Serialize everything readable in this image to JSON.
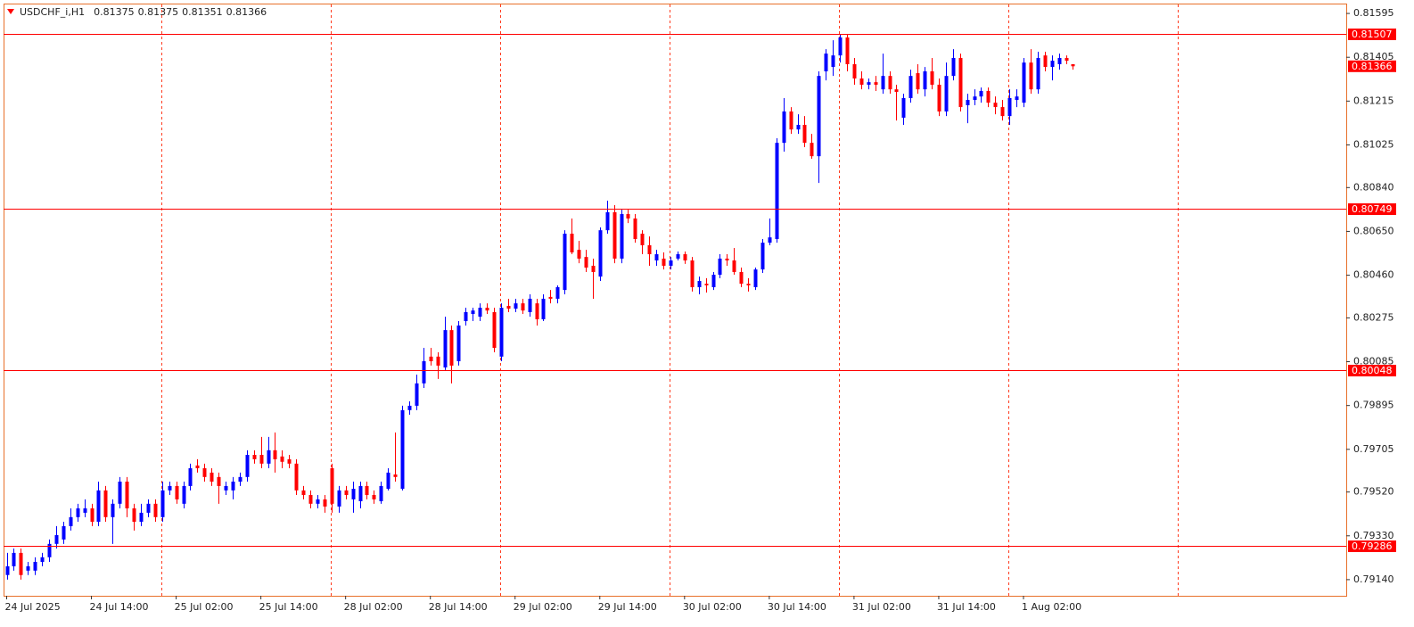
{
  "chart_data": {
    "type": "candlestick",
    "title": "USDCHF_i,H1",
    "up_color": "#0000ff",
    "down_color": "#ff0000",
    "level_color": "#ff0000",
    "ylim": [
      0.7907,
      0.81634
    ],
    "yticks": [
      0.81595,
      0.81405,
      0.81215,
      0.81025,
      {
        "value": 0.8084,
        "label": "0.80840"
      },
      {
        "value": 0.8065,
        "label": "0.80650"
      },
      {
        "value": 0.8046,
        "label": "0.80460"
      },
      0.80275,
      0.80085,
      0.79895,
      0.79705,
      {
        "value": 0.7952,
        "label": "0.79520"
      },
      {
        "value": 0.7933,
        "label": "0.79330"
      },
      {
        "value": 0.7914,
        "label": "0.79140"
      }
    ],
    "levels": [
      0.81507,
      0.80749,
      0.80048,
      0.79286
    ],
    "period_separators": [
      22,
      46,
      70,
      94,
      118,
      142,
      166
    ],
    "categories": [
      "24 Jul 2025",
      null,
      null,
      null,
      null,
      null,
      null,
      null,
      null,
      null,
      null,
      null,
      "24 Jul 14:00",
      null,
      null,
      null,
      null,
      null,
      null,
      null,
      null,
      null,
      null,
      null,
      "25 Jul 02:00",
      null,
      null,
      null,
      null,
      null,
      null,
      null,
      null,
      null,
      null,
      null,
      "25 Jul 14:00",
      null,
      null,
      null,
      null,
      null,
      null,
      null,
      null,
      null,
      null,
      null,
      "28 Jul 02:00",
      null,
      null,
      null,
      null,
      null,
      null,
      null,
      null,
      null,
      null,
      null,
      "28 Jul 14:00",
      null,
      null,
      null,
      null,
      null,
      null,
      null,
      null,
      null,
      null,
      null,
      "29 Jul 02:00",
      null,
      null,
      null,
      null,
      null,
      null,
      null,
      null,
      null,
      null,
      null,
      "29 Jul 14:00",
      null,
      null,
      null,
      null,
      null,
      null,
      null,
      null,
      null,
      null,
      null,
      "30 Jul 02:00",
      null,
      null,
      null,
      null,
      null,
      null,
      null,
      null,
      null,
      null,
      null,
      "30 Jul 14:00",
      null,
      null,
      null,
      null,
      null,
      null,
      null,
      null,
      null,
      null,
      null,
      "31 Jul 02:00",
      null,
      null,
      null,
      null,
      null,
      null,
      null,
      null,
      null,
      null,
      null,
      "31 Jul 14:00",
      null,
      null,
      null,
      null,
      null,
      null,
      null,
      null,
      null,
      null,
      null,
      "1 Aug 02:00",
      null,
      null,
      null,
      null,
      null,
      null,
      null
    ],
    "open": [
      0.7916,
      0.79198,
      0.79256,
      0.79179,
      0.79179,
      0.79217,
      0.79237,
      0.79295,
      0.79314,
      0.79372,
      0.79411,
      0.7943,
      0.79449,
      0.79391,
      0.79527,
      0.79411,
      0.79469,
      0.79565,
      0.79449,
      0.79391,
      0.7943,
      0.79469,
      0.79411,
      0.79527,
      0.79546,
      0.79469,
      0.79546,
      0.79635,
      0.79623,
      0.79604,
      0.79585,
      0.79527,
      0.79527,
      0.79565,
      0.79585,
      0.79681,
      0.79681,
      0.79643,
      0.79701,
      0.79674,
      0.79662,
      0.79643,
      0.79527,
      0.79507,
      0.79469,
      0.79488,
      0.79623,
      0.79457,
      0.79527,
      0.79488,
      0.7948,
      0.79546,
      0.79507,
      0.7948,
      0.79534,
      0.79596,
      0.79534,
      0.79875,
      0.79894,
      0.79991,
      0.80107,
      0.80107,
      0.8006,
      0.80222,
      0.80087,
      0.80261,
      0.80292,
      0.8028,
      0.80319,
      0.803,
      0.80107,
      0.80327,
      0.80315,
      0.80338,
      0.803,
      0.80338,
      0.80269,
      0.80366,
      0.80358,
      0.80396,
      0.8064,
      0.8057,
      0.80539,
      0.80501,
      0.80454,
      0.80655,
      0.80733,
      0.80532,
      0.80725,
      0.80706,
      0.8064,
      0.8059,
      0.80524,
      0.80532,
      0.80501,
      0.80532,
      0.80551,
      0.80524,
      0.80408,
      0.80423,
      0.80408,
      0.80462,
      0.80532,
      0.80524,
      0.80474,
      0.80423,
      0.80408,
      0.80485,
      0.80601,
      0.80617,
      0.81034,
      0.8117,
      0.81092,
      0.81112,
      0.81034,
      0.80976,
      0.81344,
      0.81363,
      0.81413,
      0.81491,
      0.81375,
      0.81313,
      0.81286,
      0.81297,
      0.81266,
      0.81324,
      0.81266,
      0.81143,
      0.81228,
      0.81336,
      0.81266,
      0.81344,
      0.81286,
      0.8117,
      0.81324,
      0.81402,
      0.81197,
      0.8122,
      0.81235,
      0.81259,
      0.81208,
      0.81189,
      0.8115,
      0.8122,
      0.81208,
      0.81382,
      0.81266,
      0.81413,
      0.81363,
      0.81375,
      0.81402,
      0.81375
    ],
    "high": [
      0.79256,
      0.79275,
      0.79275,
      0.79217,
      0.79237,
      0.79256,
      0.79314,
      0.79372,
      0.79391,
      0.79449,
      0.79469,
      0.79488,
      0.79469,
      0.79565,
      0.79546,
      0.79488,
      0.79585,
      0.79585,
      0.79469,
      0.79469,
      0.79488,
      0.79488,
      0.79565,
      0.79565,
      0.79565,
      0.79565,
      0.79643,
      0.79662,
      0.79643,
      0.79623,
      0.79604,
      0.79565,
      0.79585,
      0.79604,
      0.79701,
      0.79701,
      0.79759,
      0.79759,
      0.79778,
      0.79701,
      0.79681,
      0.79662,
      0.79546,
      0.79527,
      0.79507,
      0.79507,
      0.79643,
      0.79546,
      0.79546,
      0.79565,
      0.79565,
      0.79565,
      0.79527,
      0.79565,
      0.79623,
      0.79778,
      0.79894,
      0.79913,
      0.80029,
      0.80145,
      0.80145,
      0.80126,
      0.8028,
      0.80242,
      0.80261,
      0.80319,
      0.80319,
      0.80338,
      0.80338,
      0.80319,
      0.80338,
      0.80358,
      0.80358,
      0.80358,
      0.80377,
      0.80358,
      0.80377,
      0.80396,
      0.80416,
      0.80655,
      0.80706,
      0.80609,
      0.8057,
      0.80532,
      0.80667,
      0.80783,
      0.80764,
      0.80744,
      0.80744,
      0.80725,
      0.80655,
      0.80628,
      0.8057,
      0.80559,
      0.80539,
      0.80563,
      0.80563,
      0.80539,
      0.80454,
      0.80447,
      0.80474,
      0.80551,
      0.80551,
      0.80578,
      0.80493,
      0.80447,
      0.80493,
      0.80617,
      0.80706,
      0.81054,
      0.81228,
      0.81189,
      0.81158,
      0.8115,
      0.81073,
      0.81344,
      0.8144,
      0.81479,
      0.81506,
      0.81506,
      0.81402,
      0.81344,
      0.81313,
      0.81324,
      0.81421,
      0.81344,
      0.81286,
      0.81247,
      0.81351,
      0.81375,
      0.81363,
      0.81402,
      0.81313,
      0.81382,
      0.8144,
      0.81421,
      0.81247,
      0.81266,
      0.81274,
      0.81274,
      0.81235,
      0.8122,
      0.81266,
      0.81266,
      0.81402,
      0.8144,
      0.81429,
      0.81429,
      0.81413,
      0.81421,
      0.81413,
      0.81375
    ],
    "low": [
      0.7914,
      0.79179,
      0.7914,
      0.7916,
      0.7916,
      0.79198,
      0.79217,
      0.79275,
      0.79295,
      0.79353,
      0.79391,
      0.79411,
      0.79372,
      0.79372,
      0.79391,
      0.79295,
      0.79449,
      0.79411,
      0.79353,
      0.79372,
      0.79411,
      0.79391,
      0.79391,
      0.79507,
      0.79469,
      0.79449,
      0.79527,
      0.79604,
      0.79565,
      0.79546,
      0.79469,
      0.79507,
      0.79488,
      0.79546,
      0.79565,
      0.79643,
      0.79623,
      0.79623,
      0.79604,
      0.79623,
      0.79623,
      0.79507,
      0.79488,
      0.79449,
      0.79449,
      0.7943,
      0.7943,
      0.7943,
      0.79488,
      0.7943,
      0.79449,
      0.79488,
      0.79469,
      0.79469,
      0.79527,
      0.79565,
      0.79527,
      0.79855,
      0.79875,
      0.79971,
      0.80068,
      0.8001,
      0.80049,
      0.79991,
      0.80068,
      0.80242,
      0.80261,
      0.80261,
      0.80292,
      0.80126,
      0.80087,
      0.803,
      0.803,
      0.80292,
      0.8028,
      0.80242,
      0.80261,
      0.80338,
      0.80338,
      0.80377,
      0.80551,
      0.80512,
      0.80474,
      0.80358,
      0.80435,
      0.8064,
      0.80512,
      0.80512,
      0.80686,
      0.80601,
      0.80551,
      0.80501,
      0.80501,
      0.80485,
      0.80485,
      0.80524,
      0.80509,
      0.80389,
      0.80377,
      0.80385,
      0.80396,
      0.80447,
      0.80501,
      0.80462,
      0.80408,
      0.80389,
      0.80396,
      0.8047,
      0.8059,
      0.80601,
      0.80996,
      0.81073,
      0.81073,
      0.81015,
      0.80965,
      0.8086,
      0.81305,
      0.81324,
      0.81382,
      0.81344,
      0.81286,
      0.81266,
      0.81266,
      0.81259,
      0.81247,
      0.81247,
      0.81131,
      0.81112,
      0.81208,
      0.81247,
      0.81235,
      0.81266,
      0.8115,
      0.8115,
      0.81305,
      0.8117,
      0.81119,
      0.81197,
      0.81208,
      0.81189,
      0.81158,
      0.81131,
      0.81112,
      0.81189,
      0.81189,
      0.81247,
      0.81247,
      0.81344,
      0.81305,
      0.81351,
      0.81375,
      0.81351
    ],
    "close": [
      0.79198,
      0.79256,
      0.7916,
      0.79198,
      0.79217,
      0.79237,
      0.79295,
      0.79333,
      0.79372,
      0.79411,
      0.79449,
      0.79449,
      0.79391,
      0.79527,
      0.79411,
      0.79469,
      0.79565,
      0.79449,
      0.79391,
      0.7943,
      0.79469,
      0.79411,
      0.79527,
      0.79546,
      0.79488,
      0.79546,
      0.79623,
      0.79623,
      0.79585,
      0.79565,
      0.79546,
      0.79546,
      0.79565,
      0.79585,
      0.79681,
      0.79662,
      0.79643,
      0.79701,
      0.79662,
      0.79651,
      0.79643,
      0.79527,
      0.79507,
      0.79469,
      0.79488,
      0.79457,
      0.79469,
      0.79527,
      0.79507,
      0.79534,
      0.79546,
      0.79507,
      0.79488,
      0.79546,
      0.79604,
      0.79585,
      0.79875,
      0.79894,
      0.79991,
      0.80087,
      0.80087,
      0.80068,
      0.80222,
      0.80068,
      0.80242,
      0.803,
      0.80307,
      0.80319,
      0.80307,
      0.80145,
      0.80319,
      0.80315,
      0.80338,
      0.80307,
      0.80358,
      0.80269,
      0.80358,
      0.80358,
      0.80408,
      0.8064,
      0.80559,
      0.80532,
      0.80493,
      0.80474,
      0.80655,
      0.80733,
      0.80532,
      0.80725,
      0.80706,
      0.80617,
      0.8059,
      0.80551,
      0.80551,
      0.80501,
      0.80524,
      0.80551,
      0.80524,
      0.80408,
      0.80435,
      0.80416,
      0.80462,
      0.80532,
      0.80524,
      0.80474,
      0.80423,
      0.80416,
      0.80485,
      0.80601,
      0.80624,
      0.81034,
      0.8117,
      0.81092,
      0.81112,
      0.81034,
      0.80976,
      0.81324,
      0.81421,
      0.81413,
      0.81491,
      0.81375,
      0.81313,
      0.81286,
      0.81297,
      0.81286,
      0.81324,
      0.81266,
      0.81255,
      0.81228,
      0.81324,
      0.81266,
      0.81344,
      0.81286,
      0.8117,
      0.81324,
      0.81402,
      0.81189,
      0.8122,
      0.81235,
      0.81259,
      0.81208,
      0.81189,
      0.8115,
      0.81228,
      0.81235,
      0.81382,
      0.81266,
      0.81402,
      0.81363,
      0.8139,
      0.81402,
      0.8139,
      0.81366
    ]
  }
}
